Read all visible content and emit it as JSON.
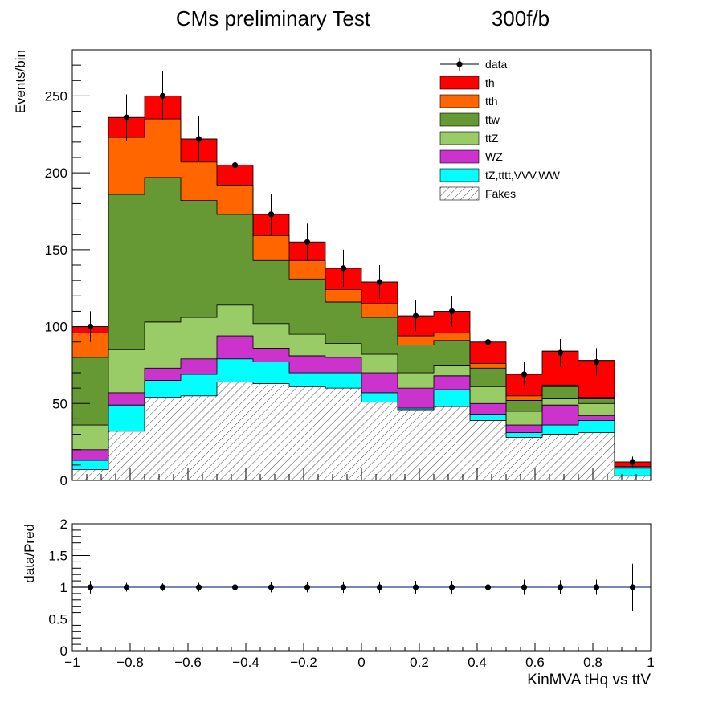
{
  "header": {
    "title": "CMs preliminary Test",
    "lumi": "300f/b"
  },
  "chart_data": [
    {
      "type": "bar",
      "stacked": true,
      "ylabel": "Events/bin",
      "ylim": [
        0,
        280
      ],
      "xlim": [
        -1,
        1
      ],
      "y_ticks": [
        0,
        50,
        100,
        150,
        200,
        250
      ],
      "grid": false,
      "legend_position": "top-right",
      "bin_edges": [
        -1.0,
        -0.875,
        -0.75,
        -0.625,
        -0.5,
        -0.375,
        -0.25,
        -0.125,
        0.0,
        0.125,
        0.25,
        0.375,
        0.5,
        0.625,
        0.75,
        0.875,
        1.0
      ],
      "series": [
        {
          "name": "Fakes",
          "color": "#ffffff",
          "hatch": true,
          "values": [
            7,
            32,
            54,
            55,
            64,
            63,
            61,
            60,
            51,
            46,
            48,
            39,
            28,
            30,
            31,
            3
          ]
        },
        {
          "name": "tZ,tttt,VVV,WW",
          "color": "#00ffff",
          "values": [
            6,
            17,
            11,
            14,
            15,
            14,
            9,
            10,
            6,
            1,
            11,
            4,
            3,
            6,
            8,
            5
          ]
        },
        {
          "name": "WZ",
          "color": "#cc33cc",
          "values": [
            7,
            8,
            8,
            10,
            15,
            9,
            11,
            10,
            13,
            13,
            9,
            7,
            5,
            13,
            3,
            1
          ]
        },
        {
          "name": "ttZ",
          "color": "#99cc66",
          "values": [
            16,
            28,
            30,
            27,
            20,
            16,
            14,
            9,
            12,
            10,
            7,
            11,
            9,
            4,
            8,
            0
          ]
        },
        {
          "name": "ttw",
          "color": "#669933",
          "values": [
            44,
            101,
            94,
            76,
            59,
            41,
            36,
            27,
            24,
            18,
            16,
            12,
            7,
            8,
            3,
            0
          ]
        },
        {
          "name": "tth",
          "color": "#ff6600",
          "values": [
            16,
            37,
            38,
            25,
            19,
            16,
            12,
            8,
            9,
            6,
            5,
            3,
            3,
            1,
            1,
            0
          ]
        },
        {
          "name": "th",
          "color": "#ff0000",
          "values": [
            4,
            13,
            15,
            15,
            13,
            14,
            12,
            14,
            14,
            13,
            14,
            14,
            14,
            22,
            24,
            3
          ]
        }
      ],
      "data_series": {
        "name": "data",
        "values": [
          100,
          236,
          250,
          222,
          205,
          173,
          155,
          138,
          129,
          107,
          110,
          90,
          69,
          83,
          77,
          12
        ],
        "errors": [
          10,
          15,
          16,
          15,
          14,
          13,
          12,
          12,
          11,
          10,
          10,
          9,
          8,
          9,
          9,
          3.5
        ]
      },
      "legend": [
        "data",
        "th",
        "tth",
        "ttw",
        "ttZ",
        "WZ",
        "tZ,tttt,VVV,WW",
        "Fakes"
      ]
    },
    {
      "type": "scatter",
      "ylabel": "data/Pred",
      "xlabel": "KinMVA tHq vs ttV",
      "ylim": [
        0,
        2
      ],
      "xlim": [
        -1,
        1
      ],
      "y_tick_labels": [
        "0",
        "0.5",
        "1",
        "1.5",
        "2"
      ],
      "x_tick_labels": [
        "−1",
        "−0.8",
        "−0.6",
        "−0.4",
        "−0.2",
        "0",
        "0.2",
        "0.4",
        "0.6",
        "0.8",
        "1"
      ],
      "reference_line": 1,
      "x": [
        -0.9375,
        -0.8125,
        -0.6875,
        -0.5625,
        -0.4375,
        -0.3125,
        -0.1875,
        -0.0625,
        0.0625,
        0.1875,
        0.3125,
        0.4375,
        0.5625,
        0.6875,
        0.8125,
        0.9375
      ],
      "values": [
        1,
        1,
        1,
        1,
        1,
        1,
        1,
        1,
        1,
        1,
        1,
        1,
        1,
        1,
        1,
        1
      ],
      "errors": [
        0.1,
        0.07,
        0.06,
        0.07,
        0.07,
        0.08,
        0.08,
        0.09,
        0.09,
        0.1,
        0.1,
        0.1,
        0.12,
        0.11,
        0.12,
        0.37
      ]
    }
  ]
}
